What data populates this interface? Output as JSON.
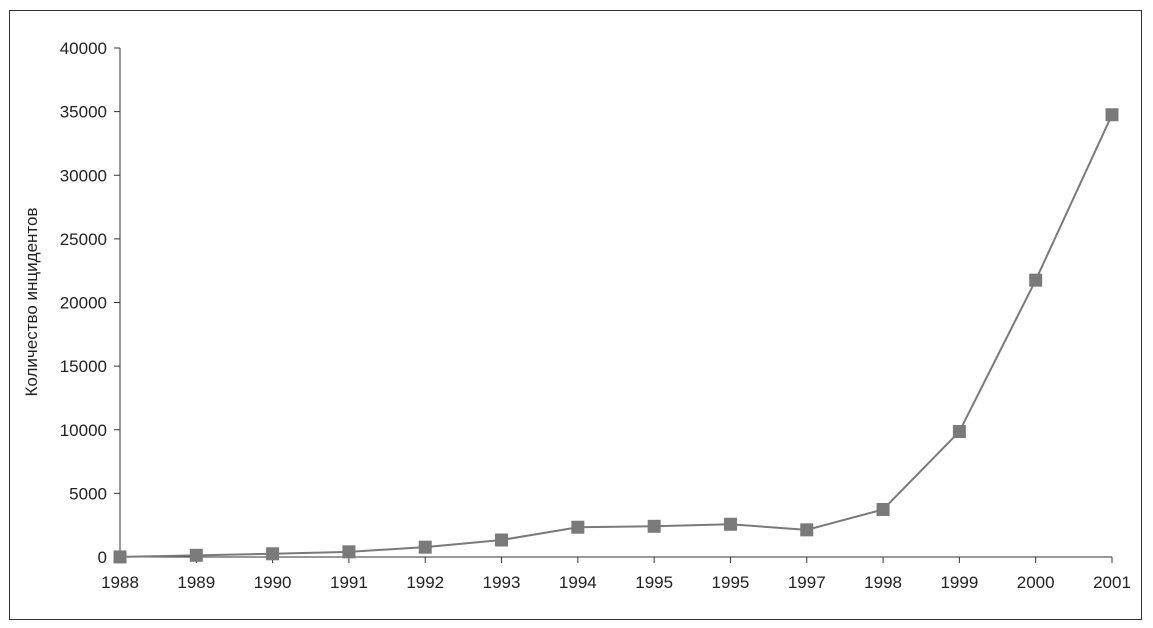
{
  "chart_data": {
    "type": "line",
    "title": "",
    "xlabel": "",
    "ylabel": "Количество инцидентов",
    "categories": [
      "1988",
      "1989",
      "1990",
      "1991",
      "1992",
      "1993",
      "1994",
      "1995",
      "1995",
      "1997",
      "1998",
      "1999",
      "2000",
      "2001"
    ],
    "series": [
      {
        "values": [
          6,
          132,
          252,
          406,
          773,
          1334,
          2340,
          2412,
          2573,
          2134,
          3734,
          9859,
          21756,
          34754
        ]
      }
    ],
    "ylim": [
      0,
      40000
    ],
    "yticks": [
      0,
      5000,
      10000,
      15000,
      20000,
      25000,
      30000,
      35000,
      40000
    ],
    "ytick_labels": [
      "0",
      "5000",
      "10000",
      "15000",
      "20000",
      "25000",
      "30000",
      "35000",
      "40000"
    ],
    "grid": false,
    "legend": "none",
    "colors": {
      "series": "#7a7a7a",
      "axis": "#333333",
      "text": "#222222"
    }
  }
}
